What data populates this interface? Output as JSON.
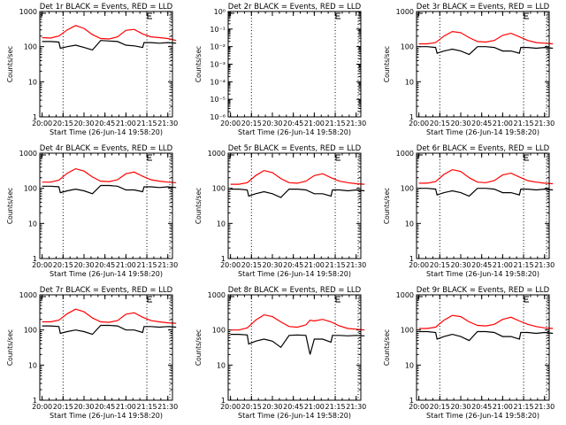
{
  "chart_data": [
    {
      "type": "line",
      "title": "Det 1r BLACK = Events, RED = LLD",
      "xlabel": "Start Time (26-Jun-14 19:58:20)",
      "ylabel": "Counts/sec",
      "yscale": "log",
      "ylim": [
        1,
        1000
      ],
      "y_tick_labels": [
        "1",
        "10",
        "100",
        "1000"
      ],
      "x_tick_labels": [
        "20:00",
        "20:15",
        "20:30",
        "20:45",
        "21:00",
        "21:15",
        "21:30"
      ],
      "series": [
        {
          "color": "#ff0000",
          "x": [
            "20:00",
            "20:06",
            "20:12",
            "20:18",
            "20:24",
            "20:30",
            "20:36",
            "20:42",
            "20:48",
            "20:54",
            "21:00",
            "21:06",
            "21:12",
            "21:18",
            "21:24",
            "21:30",
            "21:36"
          ],
          "y": [
            180,
            175,
            200,
            300,
            400,
            330,
            220,
            170,
            165,
            190,
            290,
            310,
            230,
            190,
            180,
            170,
            150
          ]
        },
        {
          "color": "#000000",
          "x": [
            "20:00",
            "20:06",
            "20:12",
            "20:13",
            "20:18",
            "20:24",
            "20:30",
            "20:36",
            "20:42",
            "20:48",
            "20:54",
            "21:00",
            "21:06",
            "21:12",
            "21:13",
            "21:18",
            "21:24",
            "21:30",
            "21:36"
          ],
          "y": [
            140,
            140,
            135,
            90,
            100,
            110,
            95,
            80,
            150,
            145,
            140,
            110,
            105,
            95,
            130,
            130,
            125,
            130,
            125
          ]
        }
      ]
    },
    {
      "type": "line",
      "title": "Det 2r BLACK = Events, RED = LLD",
      "xlabel": "Start Time (26-Jun-14 19:58:20)",
      "ylabel": "Counts/sec",
      "yscale": "log",
      "ylim": [
        1e-06,
        1
      ],
      "y_tick_labels": [
        "10⁻⁶",
        "10⁻⁵",
        "10⁻⁴",
        "10⁻³",
        "10⁻²",
        "10⁻¹",
        "10⁰"
      ],
      "x_tick_labels": [
        "20:00",
        "20:15",
        "20:30",
        "20:45",
        "21:00",
        "21:15",
        "21:30"
      ],
      "series": []
    },
    {
      "type": "line",
      "title": "Det 3r BLACK = Events, RED = LLD",
      "xlabel": "Start Time (26-Jun-14 19:58:20)",
      "ylabel": "Counts/sec",
      "yscale": "log",
      "ylim": [
        1,
        1000
      ],
      "y_tick_labels": [
        "1",
        "10",
        "100",
        "1000"
      ],
      "x_tick_labels": [
        "20:00",
        "20:15",
        "20:30",
        "20:45",
        "21:00",
        "21:15",
        "21:30"
      ],
      "series": [
        {
          "color": "#ff0000",
          "x": [
            "20:00",
            "20:06",
            "20:12",
            "20:18",
            "20:24",
            "20:30",
            "20:36",
            "20:42",
            "20:48",
            "20:54",
            "21:00",
            "21:06",
            "21:12",
            "21:18",
            "21:24",
            "21:30",
            "21:36"
          ],
          "y": [
            120,
            120,
            130,
            200,
            270,
            250,
            180,
            140,
            135,
            150,
            210,
            240,
            190,
            150,
            130,
            125,
            120
          ]
        },
        {
          "color": "#000000",
          "x": [
            "20:00",
            "20:06",
            "20:12",
            "20:13",
            "20:18",
            "20:24",
            "20:30",
            "20:36",
            "20:42",
            "20:48",
            "20:54",
            "21:00",
            "21:06",
            "21:12",
            "21:13",
            "21:18",
            "21:24",
            "21:30",
            "21:36"
          ],
          "y": [
            100,
            100,
            95,
            65,
            75,
            85,
            75,
            60,
            100,
            100,
            95,
            75,
            75,
            65,
            95,
            95,
            90,
            95,
            90
          ]
        }
      ]
    },
    {
      "type": "line",
      "title": "Det 4r BLACK = Events, RED = LLD",
      "xlabel": "Start Time (26-Jun-14 19:58:20)",
      "ylabel": "Counts/sec",
      "yscale": "log",
      "ylim": [
        1,
        1000
      ],
      "y_tick_labels": [
        "1",
        "10",
        "100",
        "1000"
      ],
      "x_tick_labels": [
        "20:00",
        "20:15",
        "20:30",
        "20:45",
        "21:00",
        "21:15",
        "21:30"
      ],
      "series": [
        {
          "color": "#ff0000",
          "x": [
            "20:00",
            "20:06",
            "20:12",
            "20:18",
            "20:24",
            "20:30",
            "20:36",
            "20:42",
            "20:48",
            "20:54",
            "21:00",
            "21:06",
            "21:12",
            "21:18",
            "21:24",
            "21:30",
            "21:36"
          ],
          "y": [
            150,
            150,
            170,
            270,
            360,
            310,
            210,
            160,
            155,
            175,
            260,
            290,
            220,
            175,
            160,
            150,
            145
          ]
        },
        {
          "color": "#000000",
          "x": [
            "20:00",
            "20:06",
            "20:12",
            "20:13",
            "20:18",
            "20:24",
            "20:30",
            "20:36",
            "20:42",
            "20:48",
            "20:54",
            "21:00",
            "21:06",
            "21:12",
            "21:13",
            "21:18",
            "21:24",
            "21:30",
            "21:36"
          ],
          "y": [
            115,
            115,
            110,
            75,
            85,
            95,
            85,
            70,
            120,
            120,
            115,
            90,
            90,
            80,
            110,
            110,
            105,
            110,
            105
          ]
        }
      ]
    },
    {
      "type": "line",
      "title": "Det 5r BLACK = Events, RED = LLD",
      "xlabel": "Start Time (26-Jun-14 19:58:20)",
      "ylabel": "Counts/sec",
      "yscale": "log",
      "ylim": [
        1,
        1000
      ],
      "y_tick_labels": [
        "1",
        "10",
        "100",
        "1000"
      ],
      "x_tick_labels": [
        "20:00",
        "20:15",
        "20:30",
        "20:45",
        "21:00",
        "21:15",
        "21:30"
      ],
      "series": [
        {
          "color": "#ff0000",
          "x": [
            "20:00",
            "20:06",
            "20:12",
            "20:18",
            "20:24",
            "20:30",
            "20:36",
            "20:42",
            "20:48",
            "20:54",
            "21:00",
            "21:06",
            "21:12",
            "21:18",
            "21:24",
            "21:30",
            "21:36"
          ],
          "y": [
            130,
            130,
            145,
            230,
            320,
            280,
            190,
            145,
            140,
            160,
            230,
            260,
            200,
            160,
            145,
            135,
            130
          ]
        },
        {
          "color": "#000000",
          "x": [
            "20:00",
            "20:06",
            "20:12",
            "20:13",
            "20:18",
            "20:24",
            "20:30",
            "20:36",
            "20:42",
            "20:48",
            "20:54",
            "21:00",
            "21:06",
            "21:12",
            "21:13",
            "21:18",
            "21:24",
            "21:30",
            "21:36"
          ],
          "y": [
            95,
            95,
            90,
            60,
            70,
            80,
            70,
            55,
            95,
            95,
            90,
            70,
            70,
            60,
            90,
            90,
            85,
            90,
            85
          ]
        }
      ]
    },
    {
      "type": "line",
      "title": "Det 6r BLACK = Events, RED = LLD",
      "xlabel": "Start Time (26-Jun-14 19:58:20)",
      "ylabel": "Counts/sec",
      "yscale": "log",
      "ylim": [
        1,
        1000
      ],
      "y_tick_labels": [
        "1",
        "10",
        "100",
        "1000"
      ],
      "x_tick_labels": [
        "20:00",
        "20:15",
        "20:30",
        "20:45",
        "21:00",
        "21:15",
        "21:30"
      ],
      "series": [
        {
          "color": "#ff0000",
          "x": [
            "20:00",
            "20:06",
            "20:12",
            "20:18",
            "20:24",
            "20:30",
            "20:36",
            "20:42",
            "20:48",
            "20:54",
            "21:00",
            "21:06",
            "21:12",
            "21:18",
            "21:24",
            "21:30",
            "21:36"
          ],
          "y": [
            140,
            140,
            155,
            250,
            340,
            300,
            200,
            150,
            145,
            165,
            240,
            270,
            210,
            165,
            150,
            140,
            135
          ]
        },
        {
          "color": "#000000",
          "x": [
            "20:00",
            "20:06",
            "20:12",
            "20:13",
            "20:18",
            "20:24",
            "20:30",
            "20:36",
            "20:42",
            "20:48",
            "20:54",
            "21:00",
            "21:06",
            "21:12",
            "21:13",
            "21:18",
            "21:24",
            "21:30",
            "21:36"
          ],
          "y": [
            100,
            100,
            95,
            65,
            75,
            85,
            75,
            60,
            100,
            100,
            95,
            75,
            75,
            65,
            95,
            95,
            90,
            95,
            90
          ]
        }
      ]
    },
    {
      "type": "line",
      "title": "Det 7r BLACK = Events, RED = LLD",
      "xlabel": "Start Time (26-Jun-14 19:58:20)",
      "ylabel": "Counts/sec",
      "yscale": "log",
      "ylim": [
        1,
        1000
      ],
      "y_tick_labels": [
        "1",
        "10",
        "100",
        "1000"
      ],
      "x_tick_labels": [
        "20:00",
        "20:15",
        "20:30",
        "20:45",
        "21:00",
        "21:15",
        "21:30"
      ],
      "series": [
        {
          "color": "#ff0000",
          "x": [
            "20:00",
            "20:06",
            "20:12",
            "20:18",
            "20:24",
            "20:30",
            "20:36",
            "20:42",
            "20:48",
            "20:54",
            "21:00",
            "21:06",
            "21:12",
            "21:18",
            "21:24",
            "21:30",
            "21:36"
          ],
          "y": [
            170,
            170,
            190,
            290,
            390,
            330,
            220,
            170,
            165,
            185,
            280,
            310,
            230,
            185,
            170,
            160,
            155
          ]
        },
        {
          "color": "#000000",
          "x": [
            "20:00",
            "20:06",
            "20:12",
            "20:13",
            "20:18",
            "20:24",
            "20:30",
            "20:36",
            "20:42",
            "20:48",
            "20:54",
            "21:00",
            "21:06",
            "21:12",
            "21:13",
            "21:18",
            "21:24",
            "21:30",
            "21:36"
          ],
          "y": [
            130,
            130,
            125,
            80,
            90,
            100,
            90,
            75,
            135,
            135,
            130,
            100,
            100,
            85,
            125,
            125,
            120,
            125,
            120
          ]
        }
      ]
    },
    {
      "type": "line",
      "title": "Det 8r BLACK = Events, RED = LLD",
      "xlabel": "Start Time (26-Jun-14 19:58:20)",
      "ylabel": "Counts/sec",
      "yscale": "log",
      "ylim": [
        1,
        1000
      ],
      "y_tick_labels": [
        "1",
        "10",
        "100",
        "1000"
      ],
      "x_tick_labels": [
        "20:00",
        "20:15",
        "20:30",
        "20:45",
        "21:00",
        "21:15",
        "21:30"
      ],
      "series": [
        {
          "color": "#ff0000",
          "x": [
            "20:00",
            "20:06",
            "20:12",
            "20:18",
            "20:24",
            "20:30",
            "20:36",
            "20:42",
            "20:48",
            "20:54",
            "20:57",
            "21:00",
            "21:06",
            "21:12",
            "21:18",
            "21:24",
            "21:30",
            "21:36"
          ],
          "y": [
            100,
            100,
            115,
            190,
            270,
            240,
            170,
            125,
            120,
            140,
            190,
            180,
            200,
            170,
            130,
            110,
            105,
            100
          ]
        },
        {
          "color": "#000000",
          "x": [
            "20:00",
            "20:06",
            "20:12",
            "20:13",
            "20:18",
            "20:24",
            "20:30",
            "20:36",
            "20:42",
            "20:48",
            "20:54",
            "20:57",
            "21:00",
            "21:06",
            "21:12",
            "21:13",
            "21:18",
            "21:24",
            "21:30",
            "21:36"
          ],
          "y": [
            75,
            75,
            72,
            40,
            48,
            55,
            48,
            32,
            70,
            72,
            70,
            20,
            55,
            55,
            45,
            70,
            70,
            68,
            70,
            68
          ]
        }
      ]
    },
    {
      "type": "line",
      "title": "Det 9r BLACK = Events, RED = LLD",
      "xlabel": "Start Time (26-Jun-14 19:58:20)",
      "ylabel": "Counts/sec",
      "yscale": "log",
      "ylim": [
        1,
        1000
      ],
      "y_tick_labels": [
        "1",
        "10",
        "100",
        "1000"
      ],
      "x_tick_labels": [
        "20:00",
        "20:15",
        "20:30",
        "20:45",
        "21:00",
        "21:15",
        "21:30"
      ],
      "series": [
        {
          "color": "#ff0000",
          "x": [
            "20:00",
            "20:06",
            "20:12",
            "20:18",
            "20:24",
            "20:30",
            "20:36",
            "20:42",
            "20:48",
            "20:54",
            "21:00",
            "21:06",
            "21:12",
            "21:18",
            "21:24",
            "21:30",
            "21:36"
          ],
          "y": [
            110,
            110,
            120,
            190,
            260,
            240,
            170,
            135,
            130,
            145,
            200,
            230,
            180,
            145,
            125,
            115,
            110
          ]
        },
        {
          "color": "#000000",
          "x": [
            "20:00",
            "20:06",
            "20:12",
            "20:13",
            "20:18",
            "20:24",
            "20:30",
            "20:36",
            "20:42",
            "20:48",
            "20:54",
            "21:00",
            "21:06",
            "21:12",
            "21:13",
            "21:18",
            "21:24",
            "21:30",
            "21:36"
          ],
          "y": [
            90,
            90,
            85,
            55,
            65,
            75,
            65,
            50,
            90,
            90,
            85,
            65,
            65,
            55,
            85,
            85,
            80,
            85,
            80
          ]
        }
      ]
    }
  ]
}
